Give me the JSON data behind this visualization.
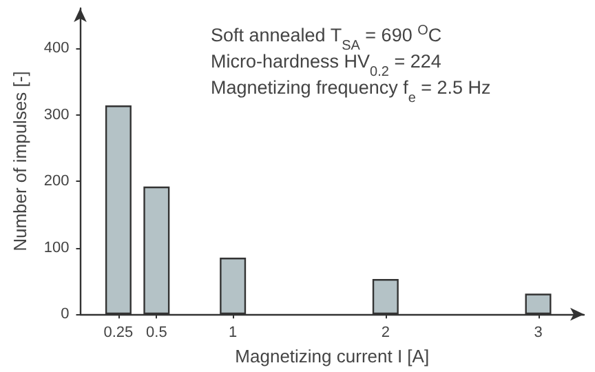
{
  "chart_data": {
    "type": "bar",
    "xlabel": "Magnetizing current I [A]",
    "ylabel": "Number of impulses [-]",
    "x": [
      0.25,
      0.5,
      1,
      2,
      3
    ],
    "values": [
      314,
      192,
      85,
      53,
      31
    ],
    "color": "#b4c2c6",
    "xlim": [
      0,
      3.3
    ],
    "xticks": [
      0.25,
      0.5,
      1,
      2,
      3
    ],
    "ylim": [
      0,
      460
    ],
    "yticks": [
      0,
      100,
      200,
      300,
      400
    ],
    "grid": false,
    "annotations": [
      "Soft annealed T$_{SA}$ = 690 $^{O}$C",
      "Micro-hardness HV$_{0.2}$ = 224",
      "Magnetizing frequency f$_{e}$ = 2.5 Hz"
    ]
  }
}
